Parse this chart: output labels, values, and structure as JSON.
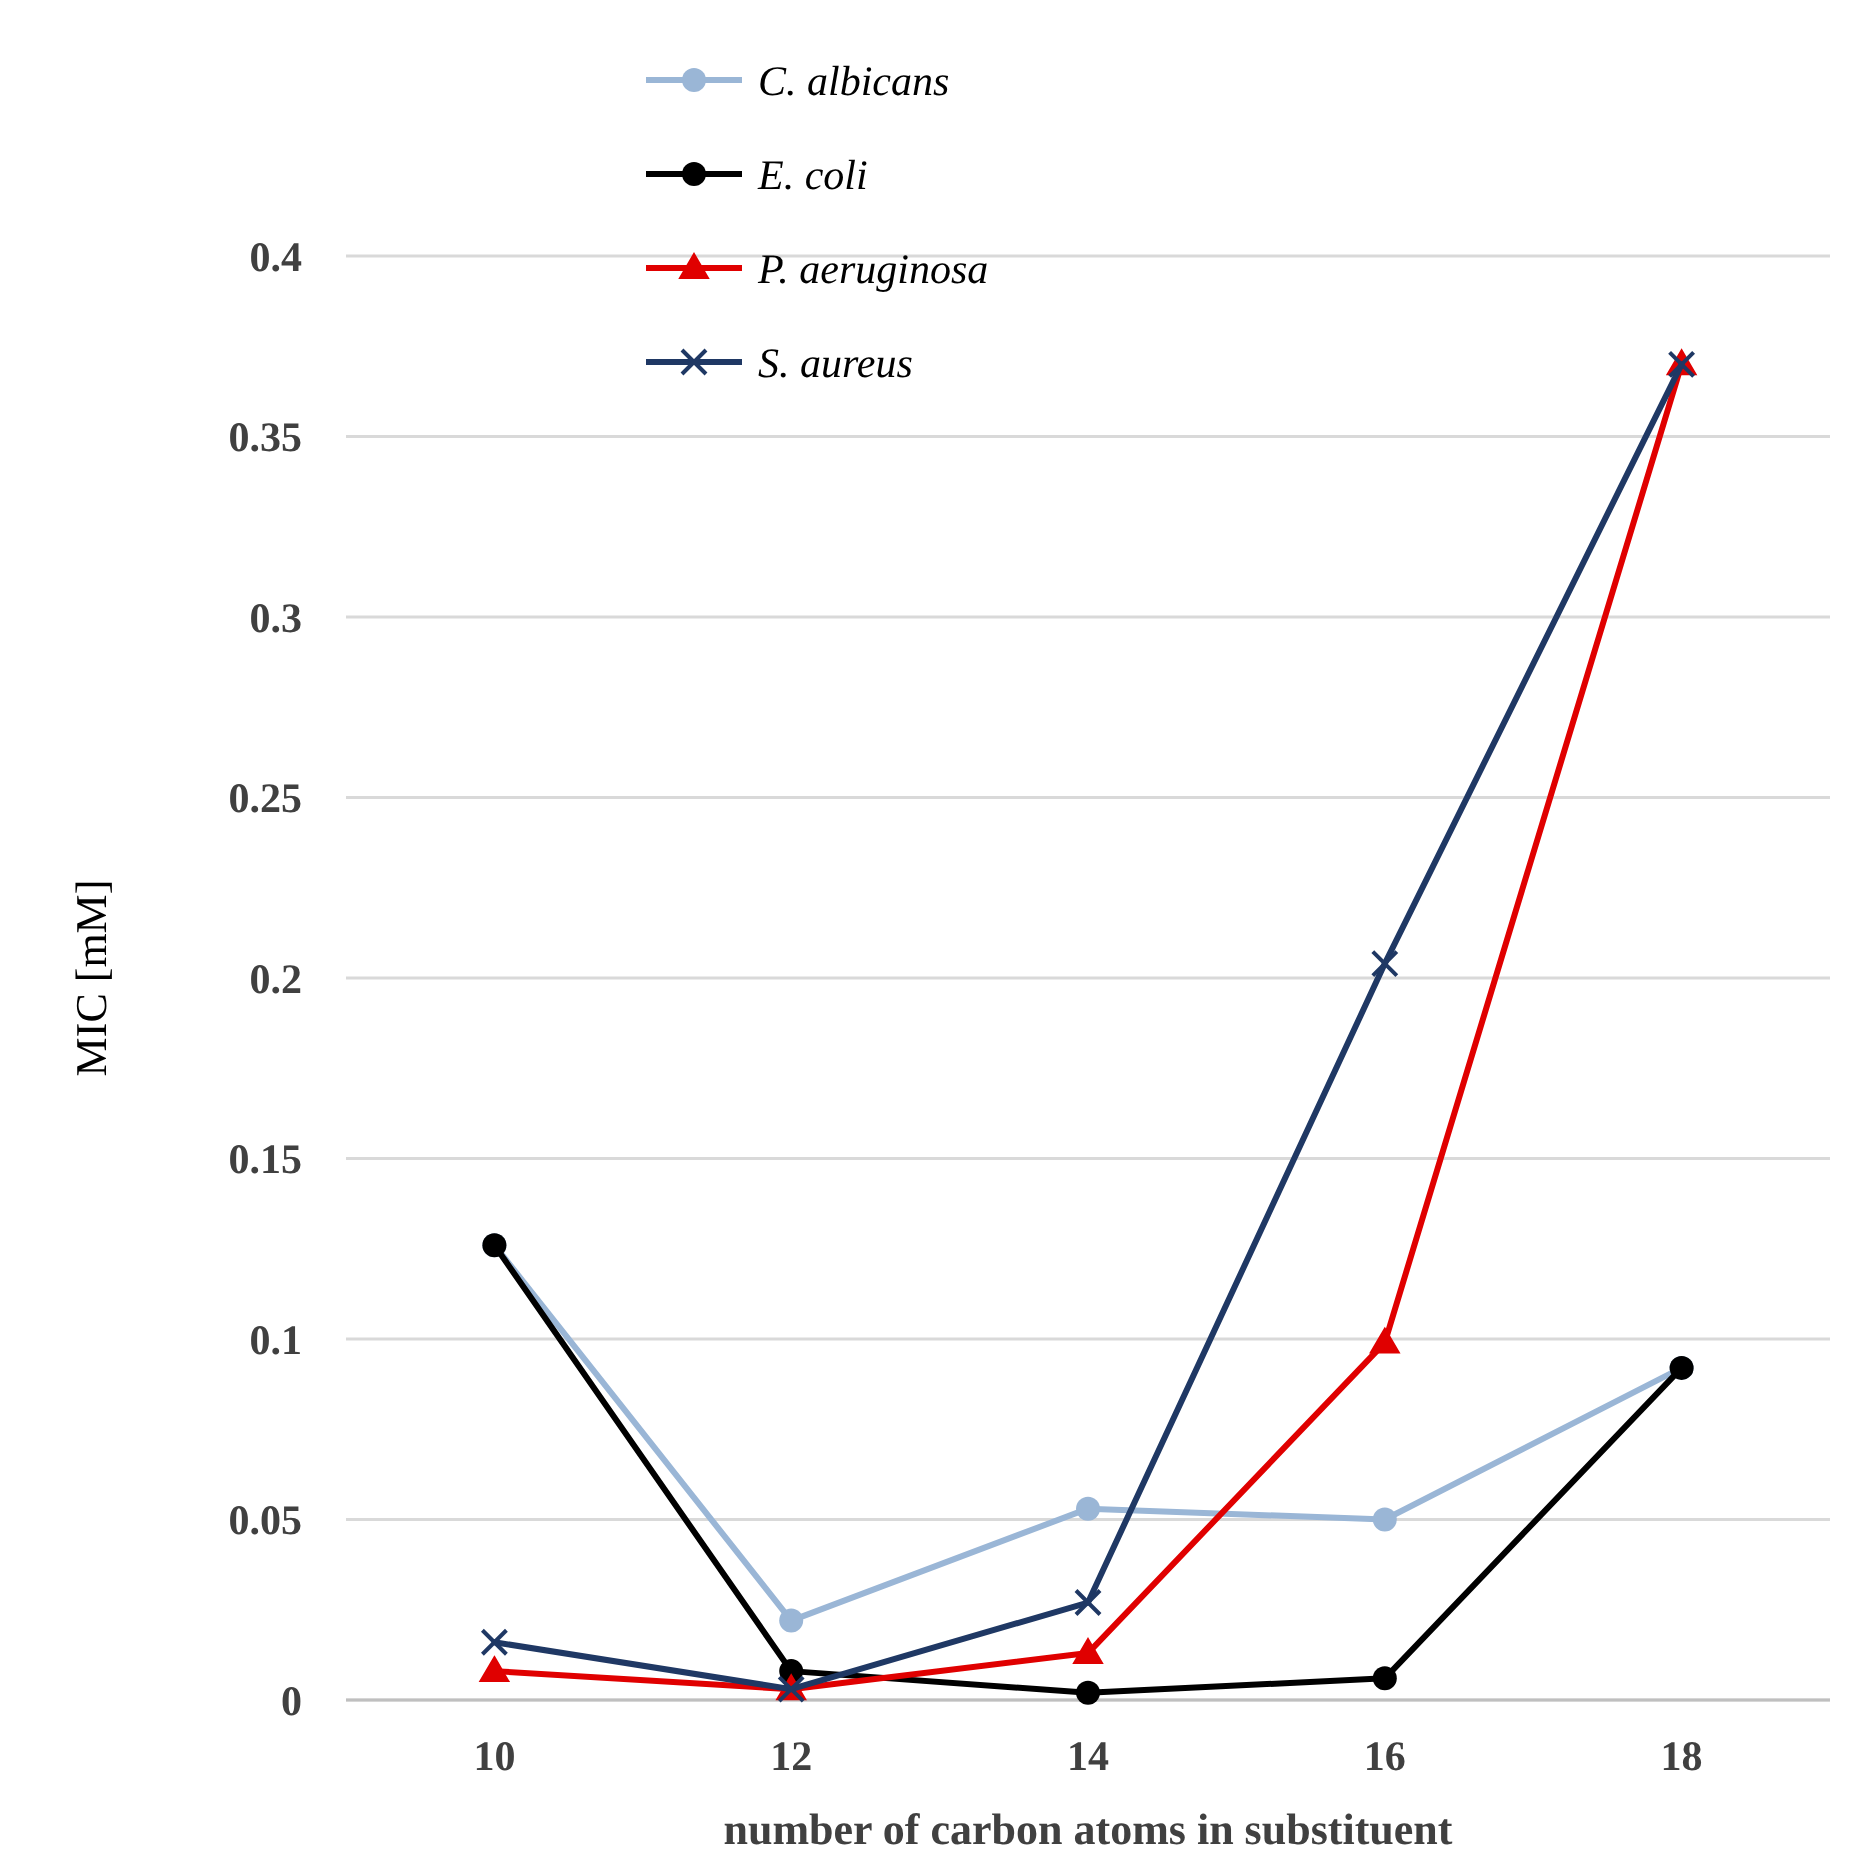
{
  "chart_data": {
    "type": "line",
    "xlabel": "number of carbon atoms in substituent",
    "ylabel": "MIC [mM]",
    "categories": [
      "10",
      "12",
      "14",
      "16",
      "18"
    ],
    "series": [
      {
        "name": "C. albicans",
        "color": "#9ab6d6",
        "marker": "circle",
        "values": [
          0.126,
          0.022,
          0.053,
          0.05,
          0.092
        ]
      },
      {
        "name": "E. coli",
        "color": "#000000",
        "marker": "circle",
        "values": [
          0.126,
          0.008,
          0.002,
          0.006,
          0.092
        ]
      },
      {
        "name": "P. aeruginosa",
        "color": "#e00000",
        "marker": "triangle",
        "values": [
          0.008,
          0.003,
          0.013,
          0.099,
          0.37
        ]
      },
      {
        "name": "S. aureus",
        "color": "#1f3864",
        "marker": "cross",
        "values": [
          0.016,
          0.003,
          0.027,
          0.204,
          0.37
        ]
      }
    ],
    "ylim": [
      0,
      0.4
    ],
    "yticks": [
      0,
      0.05,
      0.1,
      0.15,
      0.2,
      0.25,
      0.3,
      0.35,
      0.4
    ],
    "grid": "y",
    "legend": "top left",
    "line_style": "solid"
  }
}
